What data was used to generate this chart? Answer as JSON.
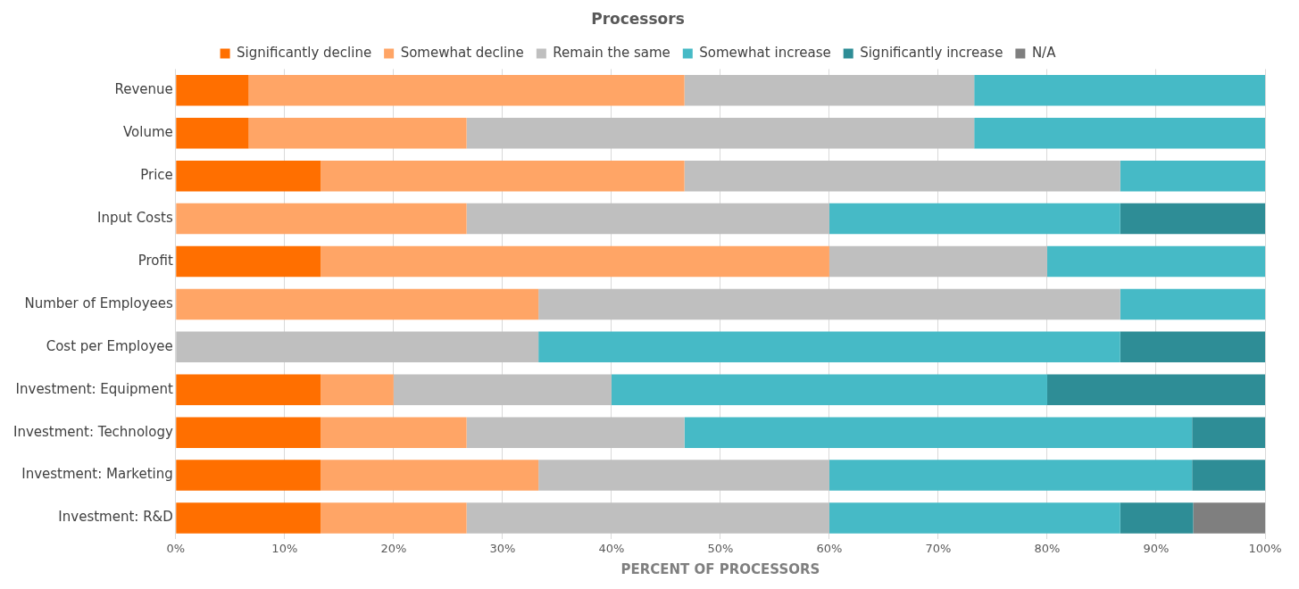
{
  "chart_data": {
    "type": "bar",
    "orientation": "horizontal",
    "stacked": true,
    "title": "Processors",
    "xlabel": "PERCENT OF PROCESSORS",
    "categories": [
      "Revenue",
      "Volume",
      "Price",
      "Input Costs",
      "Profit",
      "Number of Employees",
      "Cost per Employee",
      "Investment: Equipment",
      "Investment: Technology",
      "Investment: Marketing",
      "Investment: R&D"
    ],
    "series": [
      {
        "name": "Significantly decline",
        "color": "#ff6f00",
        "values": [
          6.7,
          6.7,
          13.3,
          0,
          13.3,
          0,
          0,
          13.3,
          13.3,
          13.3,
          13.3
        ]
      },
      {
        "name": "Somewhat decline",
        "color": "#ffa566",
        "values": [
          40,
          20,
          33.4,
          26.7,
          46.7,
          33.3,
          0,
          6.7,
          13.4,
          20,
          13.4
        ]
      },
      {
        "name": "Remain the same",
        "color": "#bfbfbf",
        "values": [
          26.6,
          46.6,
          40,
          33.3,
          20,
          53.4,
          33.3,
          20,
          20,
          26.7,
          33.3
        ]
      },
      {
        "name": "Somewhat increase",
        "color": "#46bac6",
        "values": [
          26.7,
          26.7,
          13.3,
          26.7,
          20,
          13.3,
          53.4,
          40,
          46.6,
          33.3,
          26.7
        ]
      },
      {
        "name": "Significantly increase",
        "color": "#2e8d96",
        "values": [
          0,
          0,
          0,
          13.3,
          0,
          0,
          13.3,
          20,
          6.7,
          6.7,
          6.7
        ]
      },
      {
        "name": "N/A",
        "color": "#7f7f7f",
        "values": [
          0,
          0,
          0,
          0,
          0,
          0,
          0,
          0,
          0,
          0,
          6.6
        ]
      }
    ],
    "xlim": [
      0,
      100
    ],
    "xticks": [
      {
        "value": 0,
        "label": "0%"
      },
      {
        "value": 10,
        "label": "10%"
      },
      {
        "value": 20,
        "label": "20%"
      },
      {
        "value": 30,
        "label": "30%"
      },
      {
        "value": 40,
        "label": "40%"
      },
      {
        "value": 50,
        "label": "50%"
      },
      {
        "value": 60,
        "label": "60%"
      },
      {
        "value": 70,
        "label": "70%"
      },
      {
        "value": 80,
        "label": "80%"
      },
      {
        "value": 90,
        "label": "90%"
      },
      {
        "value": 100,
        "label": "100%"
      }
    ],
    "grid": "x",
    "legend": "top"
  }
}
